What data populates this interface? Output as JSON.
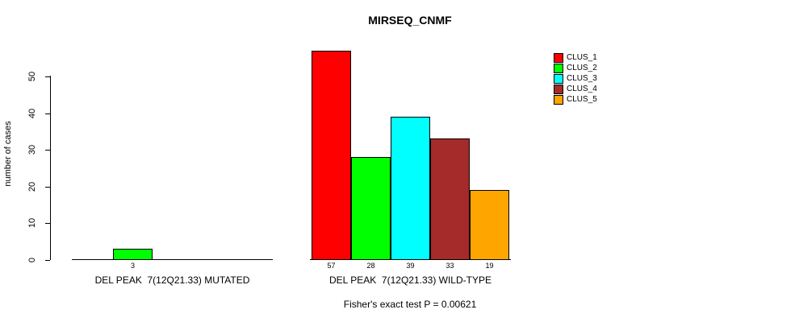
{
  "chart_data": {
    "type": "bar",
    "title": "MIRSEQ_CNMF",
    "ylabel": "number of cases",
    "xlabel": "",
    "yticks": [
      0,
      10,
      20,
      30,
      40,
      50
    ],
    "ylim": [
      0,
      57
    ],
    "grid": false,
    "legend_position": "top-right",
    "series": [
      {
        "name": "CLUS_1",
        "color": "#FF0000"
      },
      {
        "name": "CLUS_2",
        "color": "#00FF00"
      },
      {
        "name": "CLUS_3",
        "color": "#00FFFF"
      },
      {
        "name": "CLUS_4",
        "color": "#A52A2A"
      },
      {
        "name": "CLUS_5",
        "color": "#FFA500"
      }
    ],
    "groups": [
      {
        "label": "DEL PEAK  7(12Q21.33) MUTATED",
        "values": [
          0,
          3,
          0,
          0,
          0
        ],
        "count_labels": [
          "",
          "3",
          "",
          "",
          ""
        ]
      },
      {
        "label": "DEL PEAK  7(12Q21.33) WILD-TYPE",
        "values": [
          57,
          28,
          39,
          33,
          19
        ],
        "count_labels": [
          "57",
          "28",
          "39",
          "33",
          "19"
        ]
      }
    ],
    "annotation": "Fisher's exact test P = 0.00621"
  }
}
